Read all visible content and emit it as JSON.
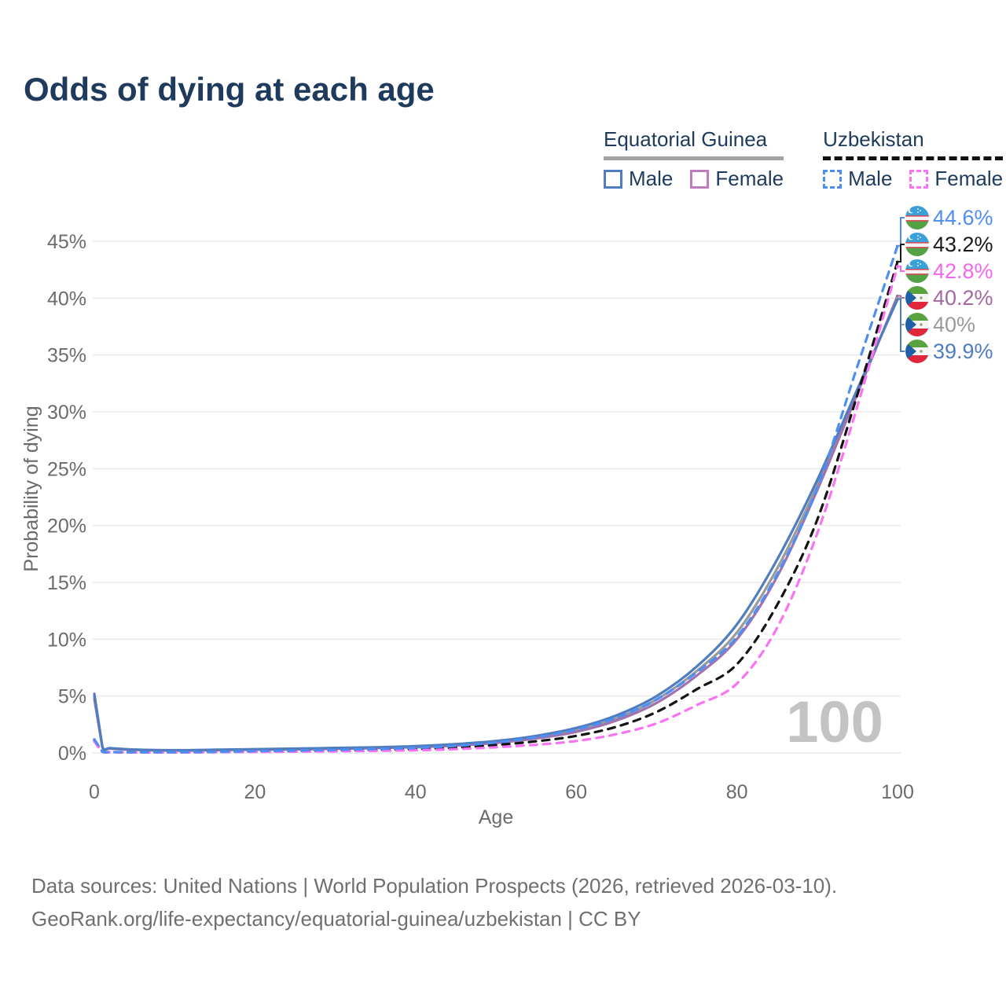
{
  "title": "Odds of dying at each age",
  "legend": {
    "groups": [
      {
        "name": "Equatorial Guinea",
        "line_style": "solid",
        "underline_color": "#a3a3a3",
        "items": [
          {
            "label": "Male",
            "color": "#4f7dbe",
            "dashed": false
          },
          {
            "label": "Female",
            "color": "#bd7cbd",
            "dashed": false
          }
        ]
      },
      {
        "name": "Uzbekistan",
        "line_style": "dashed",
        "underline_color": "#111111",
        "items": [
          {
            "label": "Male",
            "color": "#4e8ef2",
            "dashed": true
          },
          {
            "label": "Female",
            "color": "#f973f2",
            "dashed": true
          }
        ]
      }
    ]
  },
  "watermark": "100",
  "footer": {
    "line1": "Data sources: United Nations | World Population Prospects (2026, retrieved 2026-03-10).",
    "line2": "GeoRank.org/life-expectancy/equatorial-guinea/uzbekistan | CC BY"
  },
  "chart_data": {
    "type": "line",
    "title": "Odds of dying at each age",
    "xlabel": "Age",
    "ylabel": "Probability of dying",
    "xlim": [
      0,
      100
    ],
    "ylim": [
      0,
      45
    ],
    "x_ticks": [
      0,
      20,
      40,
      60,
      80,
      100
    ],
    "y_ticks": [
      0,
      5,
      10,
      15,
      20,
      25,
      30,
      35,
      40,
      45
    ],
    "y_tick_labels": [
      "0%",
      "5%",
      "10%",
      "15%",
      "20%",
      "25%",
      "30%",
      "35%",
      "40%",
      "45%"
    ],
    "grid": "horizontal-only",
    "legend_position": "top-right",
    "x": [
      0,
      1,
      2,
      5,
      10,
      15,
      20,
      25,
      30,
      35,
      40,
      45,
      50,
      55,
      60,
      65,
      70,
      75,
      80,
      85,
      90,
      95,
      100
    ],
    "series": [
      {
        "name": "Equatorial Guinea Total",
        "country": "Equatorial Guinea",
        "sex": "total",
        "color": "#9a9a9a",
        "dash": "solid",
        "values": [
          5.0,
          0.52,
          0.4,
          0.28,
          0.22,
          0.26,
          0.3,
          0.34,
          0.4,
          0.46,
          0.55,
          0.7,
          0.95,
          1.38,
          2.0,
          3.05,
          4.7,
          7.2,
          10.6,
          16.2,
          23.5,
          31.8,
          40.0
        ]
      },
      {
        "name": "Equatorial Guinea Female",
        "country": "Equatorial Guinea",
        "sex": "female",
        "color": "#a172ae",
        "dash": "solid",
        "values": [
          4.75,
          0.5,
          0.38,
          0.26,
          0.2,
          0.24,
          0.28,
          0.31,
          0.36,
          0.42,
          0.5,
          0.64,
          0.88,
          1.27,
          1.85,
          2.85,
          4.4,
          6.8,
          10.0,
          15.5,
          23.1,
          31.6,
          40.2
        ]
      },
      {
        "name": "Equatorial Guinea Male",
        "country": "Equatorial Guinea",
        "sex": "male",
        "color": "#4f7dbe",
        "dash": "solid",
        "values": [
          5.2,
          0.55,
          0.42,
          0.3,
          0.24,
          0.28,
          0.33,
          0.38,
          0.44,
          0.5,
          0.6,
          0.78,
          1.05,
          1.5,
          2.2,
          3.3,
          5.0,
          7.6,
          11.3,
          17.0,
          24.0,
          32.0,
          39.9
        ]
      },
      {
        "name": "Uzbekistan Total",
        "country": "Uzbekistan",
        "sex": "total",
        "color": "#141414",
        "dash": "dashed",
        "values": [
          1.1,
          0.1,
          0.07,
          0.05,
          0.05,
          0.08,
          0.12,
          0.16,
          0.2,
          0.26,
          0.33,
          0.47,
          0.7,
          1.02,
          1.5,
          2.3,
          3.6,
          5.6,
          7.8,
          13.0,
          20.5,
          31.5,
          43.2
        ]
      },
      {
        "name": "Uzbekistan Female",
        "country": "Uzbekistan",
        "sex": "female",
        "color": "#f973f2",
        "dash": "dashed",
        "values": [
          1.0,
          0.09,
          0.06,
          0.04,
          0.04,
          0.06,
          0.09,
          0.11,
          0.14,
          0.18,
          0.23,
          0.33,
          0.5,
          0.72,
          1.05,
          1.65,
          2.6,
          4.2,
          6.1,
          11.0,
          19.3,
          30.5,
          42.8
        ]
      },
      {
        "name": "Uzbekistan Male",
        "country": "Uzbekistan",
        "sex": "male",
        "color": "#4e8ef2",
        "dash": "dashed",
        "values": [
          1.2,
          0.12,
          0.08,
          0.06,
          0.06,
          0.1,
          0.16,
          0.21,
          0.27,
          0.34,
          0.44,
          0.62,
          0.92,
          1.38,
          2.05,
          3.1,
          4.7,
          7.1,
          10.2,
          15.7,
          23.3,
          34.0,
          44.6
        ]
      }
    ],
    "end_labels": [
      {
        "text": "44.6%",
        "value": 44.6,
        "color": "#4e8ef2",
        "flag": "uzbekistan",
        "series": "Uzbekistan Male"
      },
      {
        "text": "43.2%",
        "value": 43.2,
        "color": "#1a1a1a",
        "flag": "uzbekistan",
        "series": "Uzbekistan Total"
      },
      {
        "text": "42.8%",
        "value": 42.8,
        "color": "#f566ee",
        "flag": "uzbekistan",
        "series": "Uzbekistan Female"
      },
      {
        "text": "40.2%",
        "value": 40.2,
        "color": "#a2689f",
        "flag": "equatorial-guinea",
        "series": "Equatorial Guinea Female"
      },
      {
        "text": "40%",
        "value": 40.0,
        "color": "#9a9a9a",
        "flag": "equatorial-guinea",
        "series": "Equatorial Guinea Total"
      },
      {
        "text": "39.9%",
        "value": 39.9,
        "color": "#4f7dbe",
        "flag": "equatorial-guinea",
        "series": "Equatorial Guinea Male"
      }
    ]
  }
}
